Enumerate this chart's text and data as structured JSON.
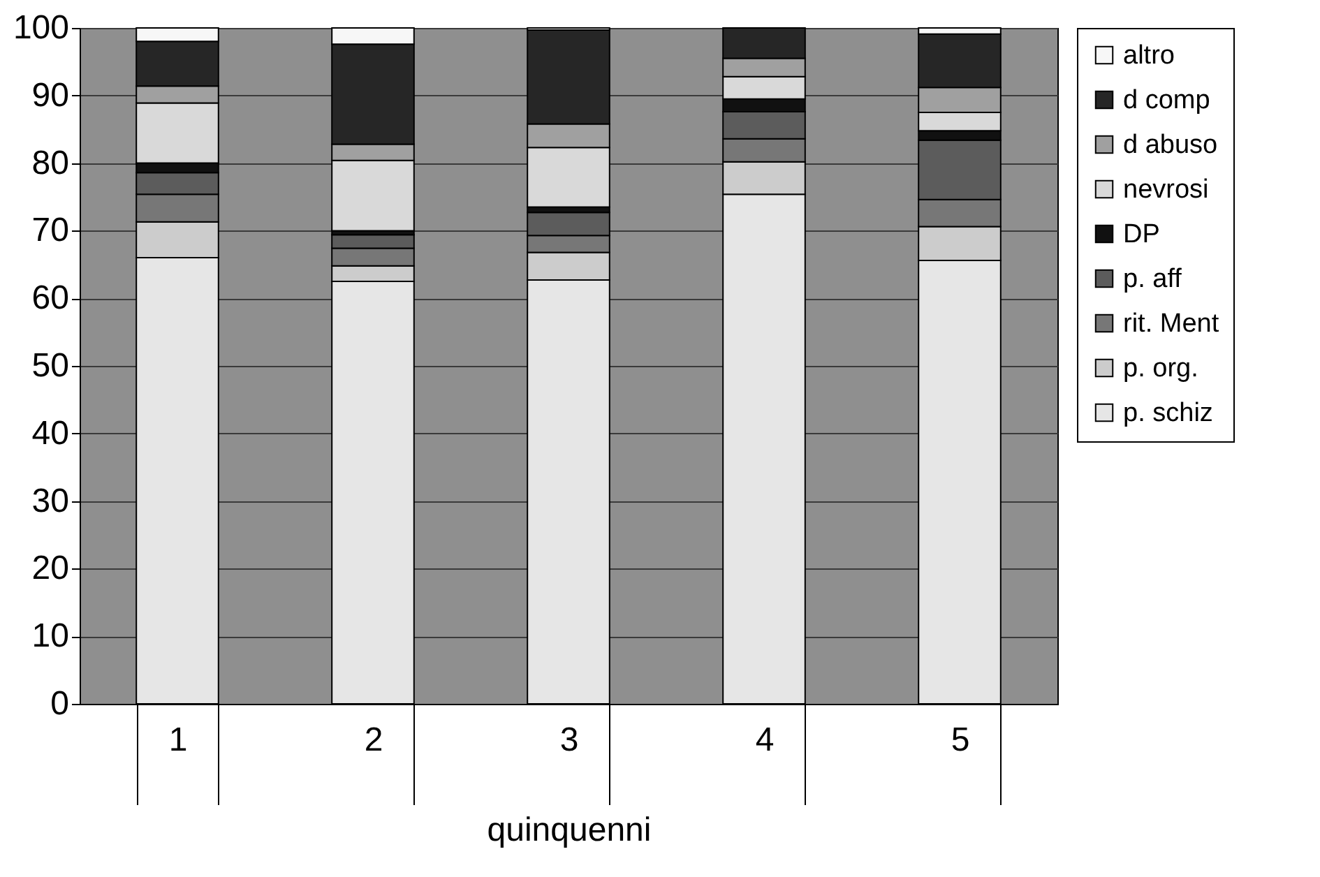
{
  "chart_data": {
    "type": "bar",
    "stacked": true,
    "xlabel": "quinquenni",
    "categories": [
      "1",
      "2",
      "3",
      "4",
      "5"
    ],
    "series": [
      {
        "name": "p. schiz",
        "color": "#e6e6e6",
        "values": [
          66.0,
          62.5,
          62.7,
          75.4,
          65.6
        ]
      },
      {
        "name": "p. org.",
        "color": "#cccccc",
        "values": [
          5.3,
          2.3,
          4.1,
          4.8,
          5.0
        ]
      },
      {
        "name": "rit. Ment",
        "color": "#777777",
        "values": [
          4.1,
          2.6,
          2.5,
          3.4,
          4.0
        ]
      },
      {
        "name": "p. aff",
        "color": "#5c5c5c",
        "values": [
          3.2,
          2.0,
          3.4,
          4.0,
          8.8
        ]
      },
      {
        "name": "DP",
        "color": "#111111",
        "values": [
          1.4,
          0.6,
          0.8,
          1.9,
          1.4
        ]
      },
      {
        "name": "nevrosi",
        "color": "#d9d9d9",
        "values": [
          8.9,
          10.4,
          8.8,
          3.3,
          2.7
        ]
      },
      {
        "name": "d abuso",
        "color": "#a0a0a0",
        "values": [
          2.5,
          2.4,
          3.5,
          2.7,
          3.7
        ]
      },
      {
        "name": "d comp",
        "color": "#262626",
        "values": [
          6.6,
          14.8,
          13.9,
          4.5,
          7.9
        ]
      },
      {
        "name": "altro",
        "color": "#f7f7f7",
        "values": [
          2.0,
          2.4,
          0.3,
          null,
          0.9
        ]
      }
    ],
    "ylim": [
      0,
      100
    ],
    "yticks": [
      0,
      10,
      20,
      30,
      40,
      50,
      60,
      70,
      80,
      90,
      100
    ],
    "grid": "y",
    "legend": "right"
  }
}
